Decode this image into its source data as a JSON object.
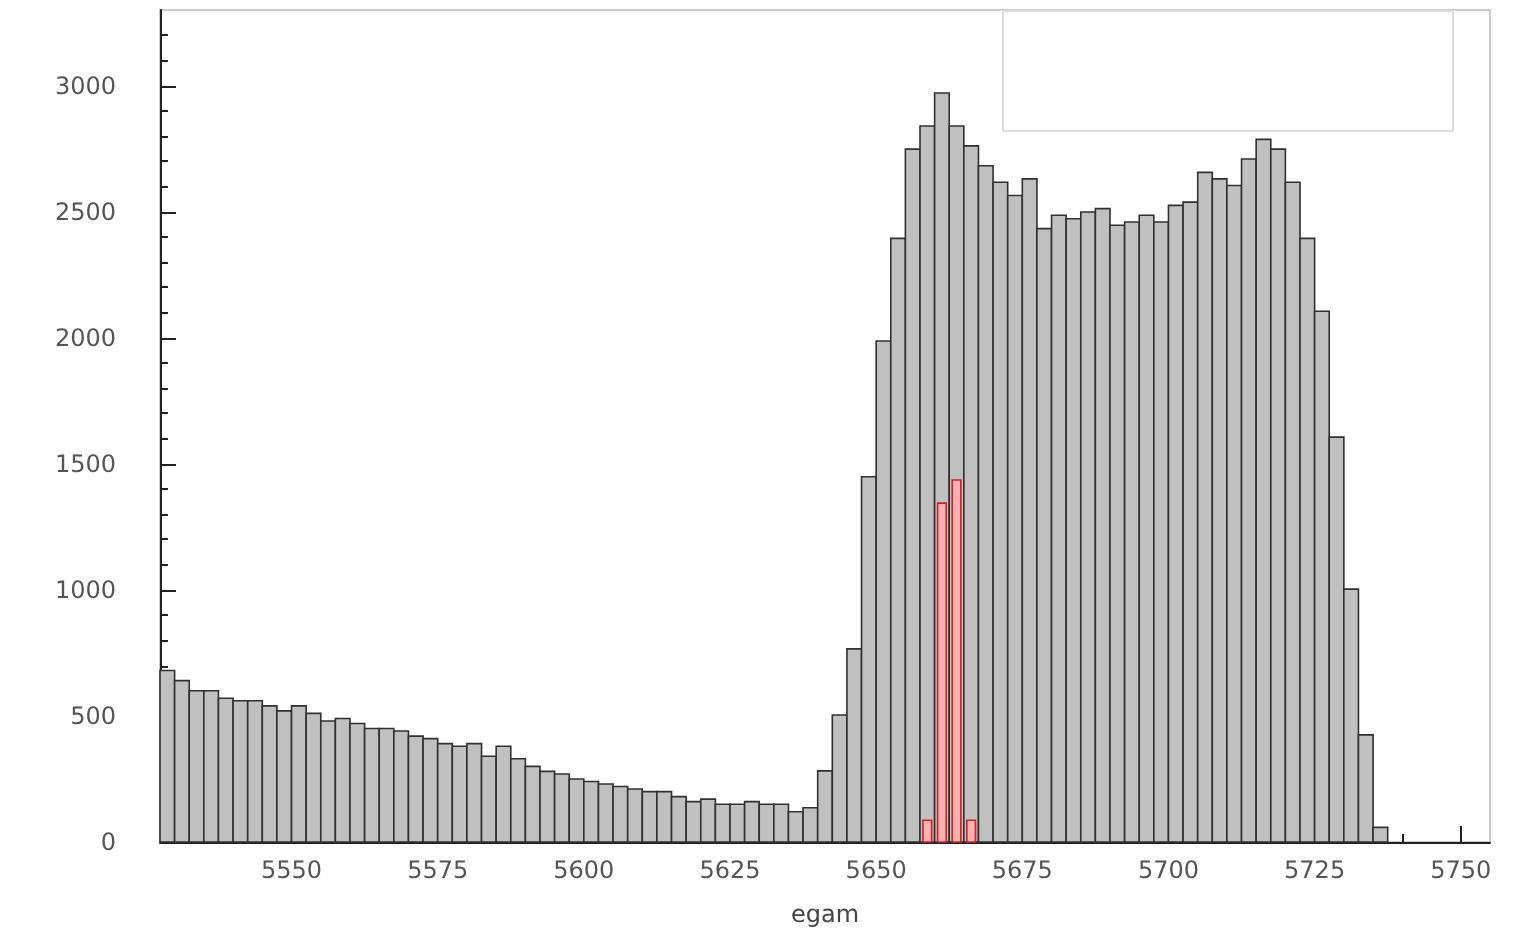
{
  "chart_data": {
    "type": "histogram",
    "xlabel": "egam",
    "bins": [
      5527.5,
      5530,
      5532.5,
      5535,
      5537.5,
      5540,
      5542.5,
      5545,
      5547.5,
      5550,
      5552.5,
      5555,
      5557.5,
      5560,
      5562.5,
      5565,
      5567.5,
      5570,
      5572.5,
      5575,
      5577.5,
      5580,
      5582.5,
      5585,
      5587.5,
      5590,
      5592.5,
      5595,
      5597.5,
      5600,
      5602.5,
      5605,
      5607.5,
      5610,
      5612.5,
      5615,
      5617.5,
      5620,
      5622.5,
      5625,
      5627.5,
      5630,
      5632.5,
      5635,
      5637.5,
      5640,
      5642.5,
      5645,
      5647.5,
      5650,
      5652.5,
      5655,
      5657.5,
      5660,
      5662.5,
      5665,
      5667.5,
      5670,
      5672.5,
      5675,
      5677.5,
      5680,
      5682.5,
      5685,
      5687.5,
      5690,
      5692.5,
      5695,
      5697.5,
      5700,
      5702.5,
      5705,
      5707.5,
      5710,
      5712.5,
      5715,
      5717.5,
      5720,
      5722.5,
      5725,
      5727.5,
      5730,
      5732.5,
      5735,
      5737.5
    ],
    "series": [
      {
        "color": "#c0c0c0",
        "values": [
          680,
          640,
          600,
          600,
          570,
          560,
          560,
          540,
          520,
          540,
          510,
          480,
          490,
          470,
          450,
          450,
          440,
          420,
          410,
          390,
          380,
          390,
          340,
          380,
          330,
          300,
          280,
          270,
          250,
          240,
          230,
          220,
          210,
          200,
          200,
          180,
          160,
          170,
          150,
          150,
          160,
          150,
          150,
          120,
          136,
          282,
          504,
          766,
          1449,
          1987,
          2394,
          2748,
          2840,
          2971,
          2840,
          2761,
          2682,
          2617,
          2564,
          2630,
          2433,
          2486,
          2472,
          2499,
          2512,
          2446,
          2459,
          2486,
          2459,
          2525,
          2538,
          2656,
          2630,
          2604,
          2709,
          2787,
          2748,
          2617,
          2394,
          2105,
          1606,
          1003,
          425,
          58
        ]
      },
      {
        "color": "#ffb0b0",
        "values": [
          0,
          0,
          0,
          0,
          0,
          0,
          0,
          0,
          0,
          0,
          0,
          0,
          0,
          0,
          0,
          0,
          0,
          0,
          0,
          0,
          0,
          0,
          0,
          0,
          0,
          0,
          0,
          0,
          0,
          0,
          0,
          0,
          0,
          0,
          0,
          0,
          0,
          0,
          0,
          0,
          0,
          0,
          0,
          0,
          0,
          0,
          0,
          0,
          0,
          0,
          0,
          0,
          86,
          1344,
          1436,
          86,
          0,
          0,
          0,
          0,
          0,
          0,
          0,
          0,
          0,
          0,
          0,
          0,
          0,
          0,
          0,
          0,
          0,
          0,
          0,
          0,
          0,
          0,
          0,
          0,
          0,
          0,
          0,
          0
        ]
      }
    ],
    "xlim": [
      5527.5,
      5755
    ],
    "xticks": [
      5550,
      5575,
      5600,
      5625,
      5650,
      5675,
      5700,
      5725,
      5750
    ],
    "ylim": [
      0,
      3300
    ],
    "yticks": [
      0,
      500,
      1000,
      1500,
      2000,
      2500,
      3000
    ],
    "grid": false
  }
}
